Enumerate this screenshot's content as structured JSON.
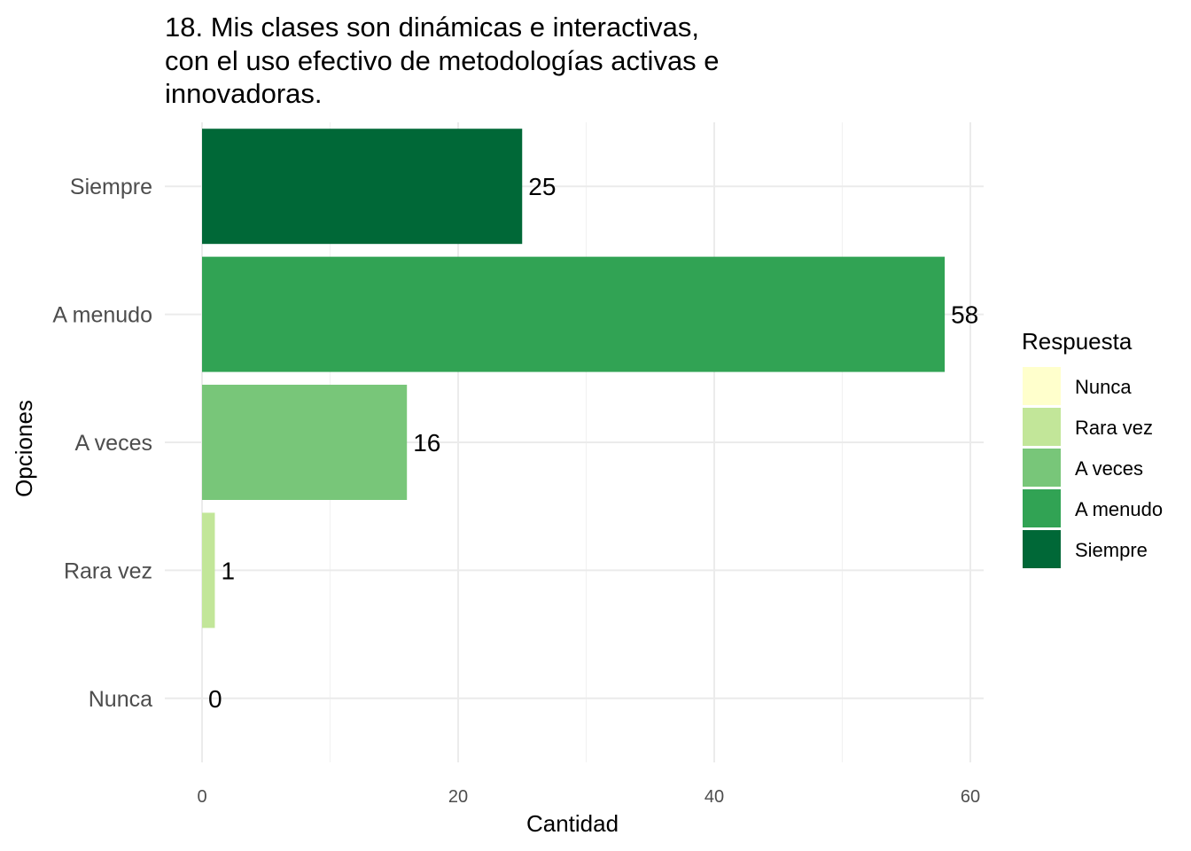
{
  "chart_data": {
    "type": "bar",
    "orientation": "horizontal",
    "title_lines": [
      "18. Mis clases son dinámicas e interactivas,",
      "con el uso efectivo de metodologías activas e",
      "innovadoras."
    ],
    "xlabel": "Cantidad",
    "ylabel": "Opciones",
    "categories": [
      "Siempre",
      "A menudo",
      "A veces",
      "Rara vez",
      "Nunca"
    ],
    "values": [
      25,
      58,
      16,
      1,
      0
    ],
    "colors": [
      "#006837",
      "#31a354",
      "#78c679",
      "#c2e699",
      "#ffffcc"
    ],
    "xlim": [
      0,
      61
    ],
    "xticks": [
      0,
      20,
      40,
      60
    ],
    "grid": true,
    "legend": {
      "title": "Respuesta",
      "position": "right",
      "items": [
        {
          "label": "Nunca",
          "color": "#ffffcc"
        },
        {
          "label": "Rara vez",
          "color": "#c2e699"
        },
        {
          "label": "A veces",
          "color": "#78c679"
        },
        {
          "label": "A menudo",
          "color": "#31a354"
        },
        {
          "label": "Siempre",
          "color": "#006837"
        }
      ]
    }
  }
}
